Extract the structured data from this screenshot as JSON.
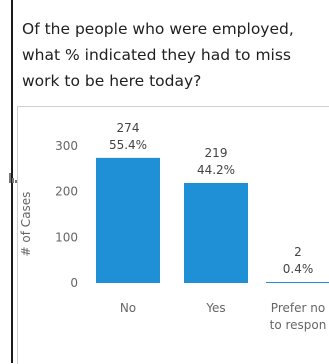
{
  "question": "Of the people who were employed,\nwhat % indicated they had to miss\nwork to be here today?",
  "chart_data": {
    "type": "bar",
    "categories": [
      "No",
      "Yes",
      "Prefer no\nto respon"
    ],
    "values": [
      274,
      219,
      2
    ],
    "percent_labels": [
      "55.4%",
      "44.2%",
      "0.4%"
    ],
    "ylabel": "# of Cases",
    "ylim": [
      0,
      300
    ],
    "yticks": [
      "0",
      "100",
      "200",
      "300"
    ],
    "bar_color": "#1f8fd6",
    "grid": false
  }
}
